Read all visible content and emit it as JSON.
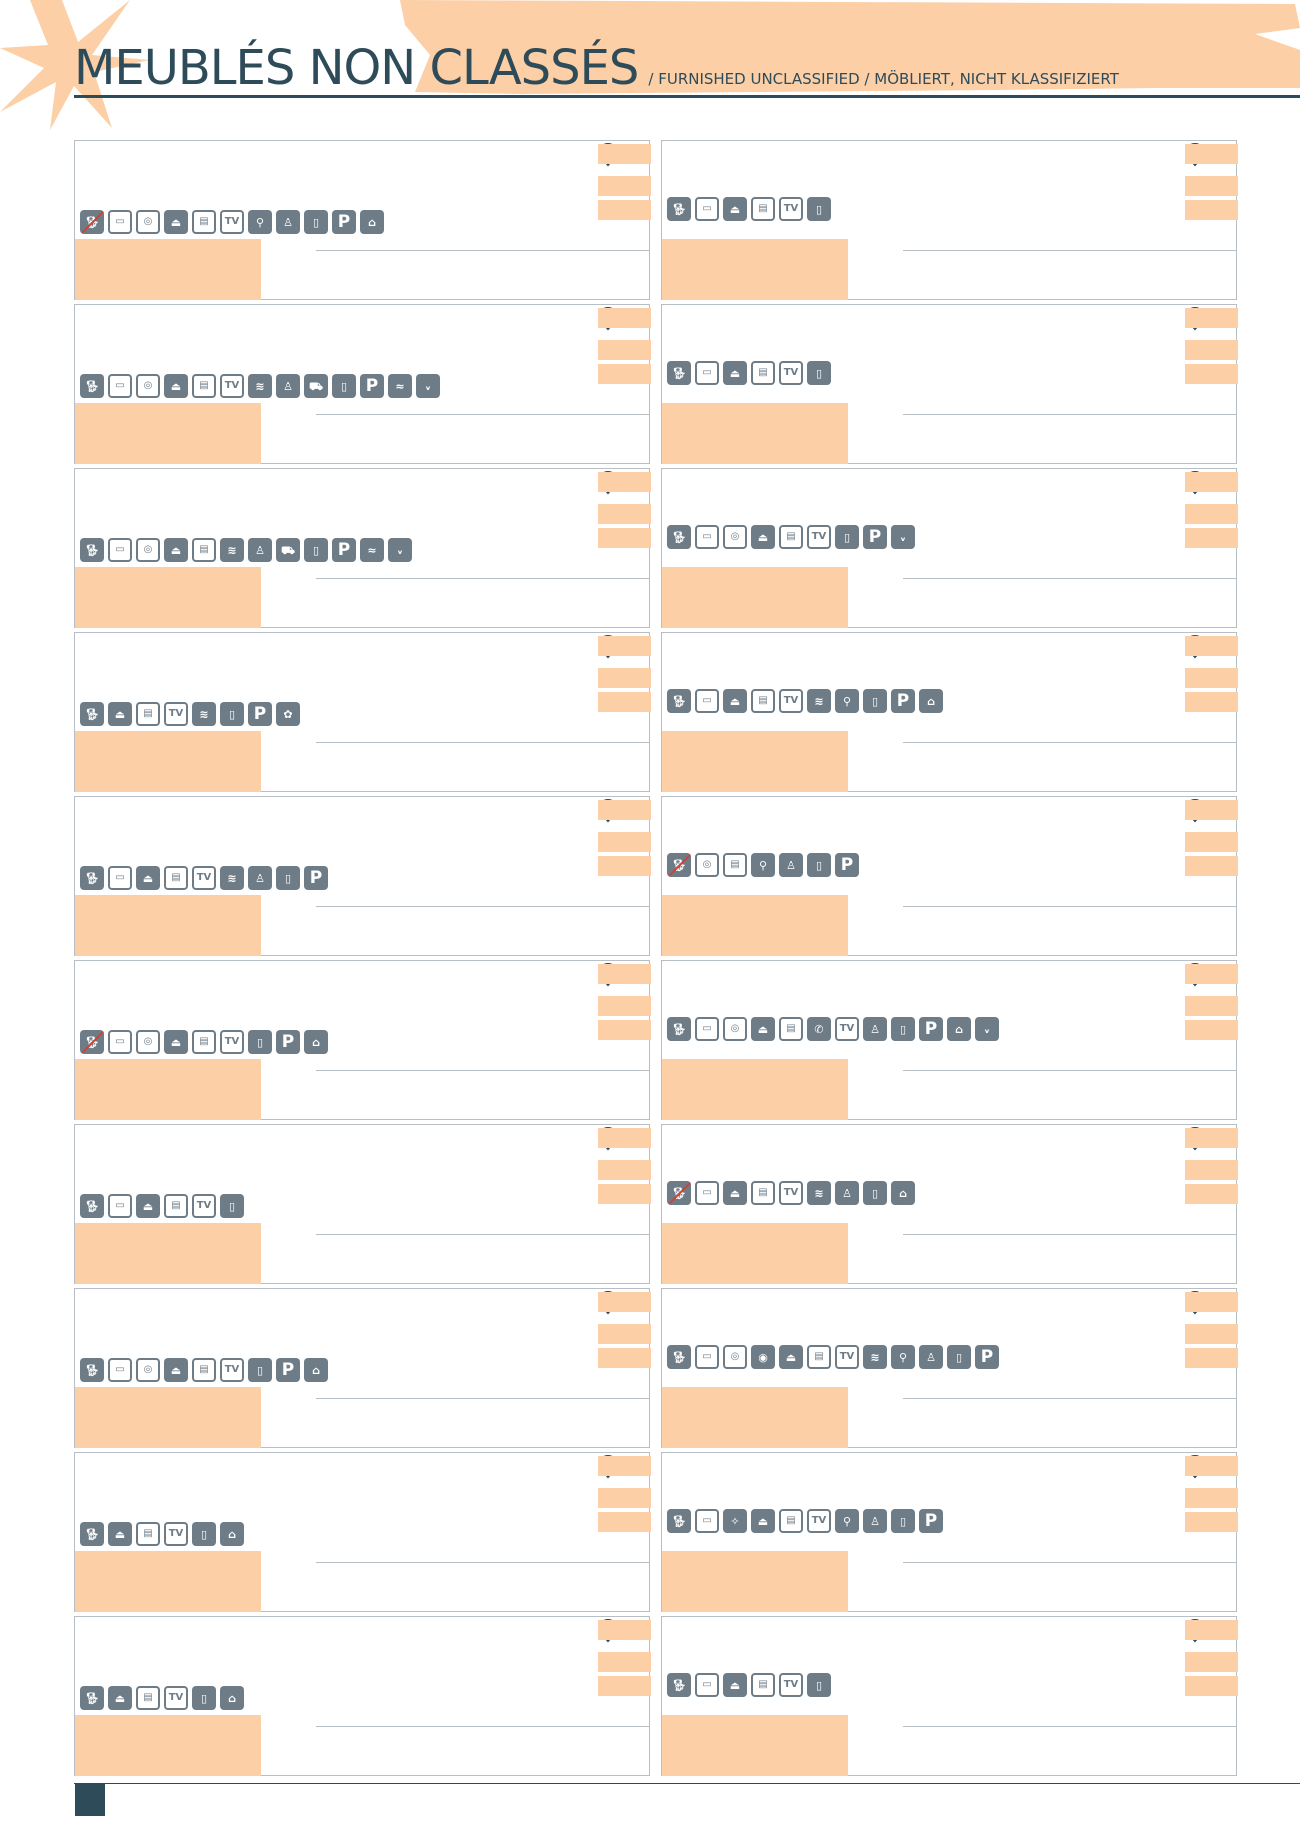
{
  "header": {
    "title": "MEUBLÉS NON CLASSÉS",
    "subtitle": "/ FURNISHED UNCLASSIFIED / MÖBLIERT, NICHT KLASSIFIZIERT"
  },
  "colors": {
    "accent": "#fccfa6",
    "ink": "#2e4b5a",
    "icon": "#6e7c87",
    "no_pet_slash": "#d8402e"
  },
  "listings": [
    {
      "amenities": [
        "no-pets",
        "microwave",
        "oven",
        "iron",
        "dishwasher",
        "tv",
        "bike",
        "children",
        "cards",
        "parking",
        "terrace"
      ]
    },
    {
      "amenities": [
        "pets",
        "microwave",
        "iron",
        "dishwasher",
        "tv",
        "cards"
      ]
    },
    {
      "amenities": [
        "pets",
        "microwave",
        "oven",
        "iron",
        "dishwasher",
        "tv",
        "wifi",
        "children",
        "garage",
        "cards",
        "parking",
        "pool",
        "ancv"
      ]
    },
    {
      "amenities": [
        "pets",
        "microwave",
        "iron",
        "dishwasher",
        "tv",
        "cards"
      ]
    },
    {
      "amenities": [
        "pets",
        "microwave",
        "oven",
        "iron",
        "dishwasher",
        "wifi",
        "children",
        "garage",
        "cards",
        "parking",
        "pool",
        "ancv"
      ]
    },
    {
      "amenities": [
        "pets",
        "microwave",
        "oven",
        "iron",
        "dishwasher",
        "tv",
        "cards",
        "parking",
        "ancv"
      ]
    },
    {
      "amenities": [
        "pets",
        "iron",
        "dishwasher",
        "tv",
        "wifi",
        "cards",
        "parking",
        "garden"
      ]
    },
    {
      "amenities": [
        "pets",
        "microwave",
        "iron",
        "dishwasher",
        "tv",
        "wifi",
        "bike",
        "cards",
        "parking",
        "terrace"
      ]
    },
    {
      "amenities": [
        "pets",
        "microwave",
        "iron",
        "dishwasher",
        "tv",
        "wifi",
        "children",
        "cards",
        "parking"
      ]
    },
    {
      "amenities": [
        "no-pets",
        "oven",
        "dishwasher",
        "bike",
        "children",
        "cards",
        "parking"
      ]
    },
    {
      "amenities": [
        "no-pets",
        "microwave",
        "oven",
        "iron",
        "dishwasher",
        "tv",
        "cards",
        "parking",
        "terrace"
      ]
    },
    {
      "amenities": [
        "pets",
        "microwave",
        "oven",
        "iron",
        "dishwasher",
        "phone",
        "tv",
        "children",
        "cards",
        "parking",
        "terrace",
        "ancv"
      ]
    },
    {
      "amenities": [
        "pets",
        "microwave",
        "iron",
        "dishwasher",
        "tv",
        "cards"
      ]
    },
    {
      "amenities": [
        "no-pets",
        "microwave",
        "iron",
        "dishwasher",
        "tv",
        "wifi",
        "children",
        "cards",
        "terrace"
      ]
    },
    {
      "amenities": [
        "pets",
        "microwave",
        "oven",
        "iron",
        "dishwasher",
        "tv",
        "cards",
        "parking",
        "terrace"
      ]
    },
    {
      "amenities": [
        "pets",
        "microwave",
        "oven",
        "washing-machine",
        "iron",
        "dishwasher",
        "tv",
        "wifi",
        "bike",
        "children",
        "cards",
        "parking"
      ]
    },
    {
      "amenities": [
        "pets",
        "iron",
        "dishwasher",
        "tv",
        "cards",
        "terrace"
      ]
    },
    {
      "amenities": [
        "pets",
        "microwave",
        "cleaning",
        "iron",
        "dishwasher",
        "tv",
        "bike",
        "children",
        "cards",
        "parking"
      ]
    },
    {
      "amenities": [
        "pets",
        "iron",
        "dishwasher",
        "tv",
        "cards",
        "terrace"
      ]
    },
    {
      "amenities": [
        "pets",
        "microwave",
        "iron",
        "dishwasher",
        "tv",
        "cards"
      ]
    }
  ]
}
